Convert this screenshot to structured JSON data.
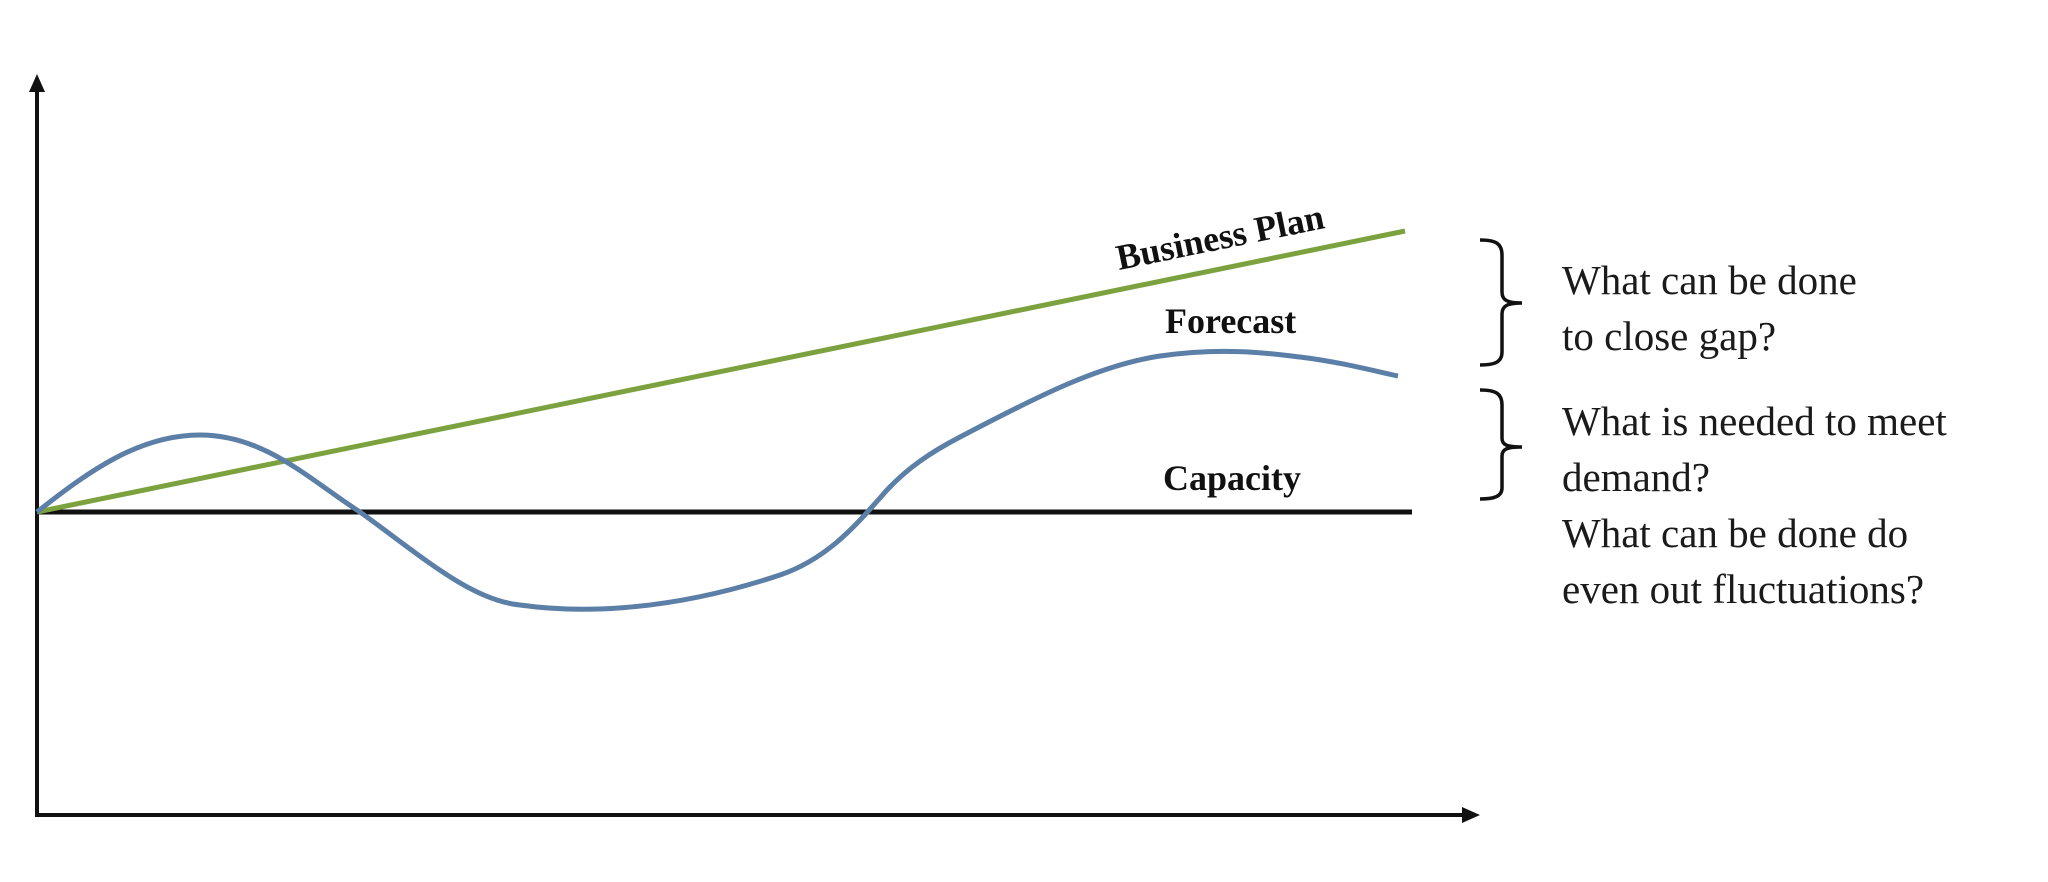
{
  "series": {
    "business_plan": {
      "label": "Business Plan",
      "color": "#7ba23f"
    },
    "forecast": {
      "label": "Forecast",
      "color": "#5b7fa6"
    },
    "capacity": {
      "label": "Capacity",
      "color": "#111111"
    }
  },
  "questions": {
    "close_gap": [
      "What can be done",
      "to close gap?"
    ],
    "capacity": [
      "What is needed to meet",
      "demand?",
      "What can be done do",
      "even out fluctuations?"
    ]
  }
}
